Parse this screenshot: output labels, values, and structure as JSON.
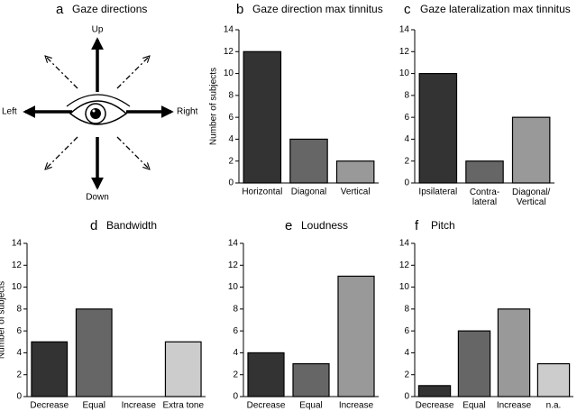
{
  "gaze_diagram": {
    "label": "a",
    "title": "Gaze directions",
    "up": "Up",
    "down": "Down",
    "left": "Left",
    "right": "Right"
  },
  "chart_data": [
    {
      "type": "bar",
      "label": "b",
      "title": "Gaze direction max tinnitus",
      "ylabel": "Number of subjects",
      "categories": [
        "Horizontal",
        "Diagonal",
        "Vertical"
      ],
      "values": [
        12,
        4,
        2
      ],
      "colors": [
        "#333333",
        "#666666",
        "#999999"
      ],
      "ylim": [
        0,
        14
      ],
      "yticks": [
        0,
        2,
        4,
        6,
        8,
        10,
        12,
        14
      ]
    },
    {
      "type": "bar",
      "label": "c",
      "title": "Gaze lateralization max tinnitus",
      "categories": [
        "Ipsilateral",
        "Contra-\nlateral",
        "Diagonal/\nVertical"
      ],
      "values": [
        10,
        2,
        6
      ],
      "colors": [
        "#333333",
        "#666666",
        "#999999"
      ],
      "ylim": [
        0,
        14
      ],
      "yticks": [
        0,
        2,
        4,
        6,
        8,
        10,
        12,
        14
      ]
    },
    {
      "type": "bar",
      "label": "d",
      "title": "Bandwidth",
      "ylabel": "Number of subjects",
      "categories": [
        "Decrease",
        "Equal",
        "Increase",
        "Extra tone"
      ],
      "values": [
        5,
        8,
        0,
        5
      ],
      "colors": [
        "#333333",
        "#666666",
        "#999999",
        "#cccccc"
      ],
      "ylim": [
        0,
        14
      ],
      "yticks": [
        0,
        2,
        4,
        6,
        8,
        10,
        12,
        14
      ]
    },
    {
      "type": "bar",
      "label": "e",
      "title": "Loudness",
      "categories": [
        "Decrease",
        "Equal",
        "Increase"
      ],
      "values": [
        4,
        3,
        11
      ],
      "colors": [
        "#333333",
        "#666666",
        "#999999"
      ],
      "ylim": [
        0,
        14
      ],
      "yticks": [
        0,
        2,
        4,
        6,
        8,
        10,
        12,
        14
      ]
    },
    {
      "type": "bar",
      "label": "f",
      "title": "Pitch",
      "categories": [
        "Decrease",
        "Equal",
        "Increase",
        "n.a."
      ],
      "values": [
        1,
        6,
        8,
        3
      ],
      "colors": [
        "#333333",
        "#666666",
        "#999999",
        "#cccccc"
      ],
      "ylim": [
        0,
        14
      ],
      "yticks": [
        0,
        2,
        4,
        6,
        8,
        10,
        12,
        14
      ]
    }
  ]
}
